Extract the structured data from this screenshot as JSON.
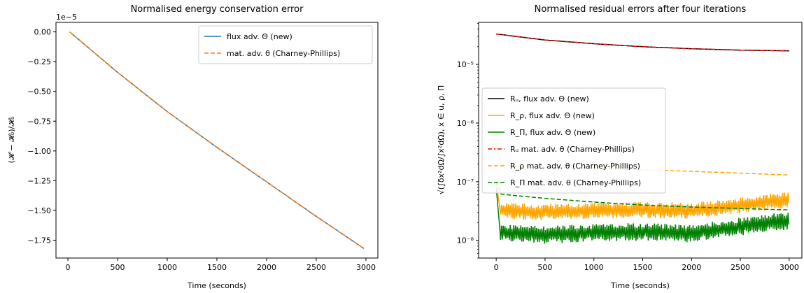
{
  "chart_data": [
    {
      "type": "line",
      "title": "Normalised energy conservation error",
      "xlabel": "Time (seconds)",
      "ylabel": "(𝓗 − 𝓗₀)/𝓗₀",
      "y_offset_text": "1e−5",
      "xlim": [
        -120,
        3120
      ],
      "ylim": [
        -1.9,
        0.08
      ],
      "x_ticks": [
        0,
        500,
        1000,
        1500,
        2000,
        2500,
        3000
      ],
      "x_tick_labels": [
        "0",
        "500",
        "1000",
        "1500",
        "2000",
        "2500",
        "3000"
      ],
      "y_ticks": [
        0.0,
        -0.25,
        -0.5,
        -0.75,
        -1.0,
        -1.25,
        -1.5,
        -1.75
      ],
      "y_tick_labels": [
        "0.00",
        "−0.25",
        "−0.50",
        "−0.75",
        "−1.00",
        "−1.25",
        "−1.50",
        "−1.75"
      ],
      "legend_position": "top-right",
      "series": [
        {
          "name": "flux adv. Θ (new)",
          "color": "#1f77b4",
          "style": "solid",
          "x": [
            18,
            500,
            1000,
            1500,
            2000,
            2500,
            2980
          ],
          "y": [
            0.0,
            -0.34,
            -0.67,
            -0.97,
            -1.26,
            -1.55,
            -1.82
          ]
        },
        {
          "name": "mat. adv. θ (Charney-Phillips)",
          "color": "#ff7f0e",
          "style": "dashed",
          "x": [
            18,
            500,
            1000,
            1500,
            2000,
            2500,
            2980
          ],
          "y": [
            0.0,
            -0.34,
            -0.67,
            -0.97,
            -1.26,
            -1.55,
            -1.82
          ]
        }
      ]
    },
    {
      "type": "line",
      "title": "Normalised residual errors after four iterations",
      "xlabel": "Time (seconds)",
      "ylabel": "√(∫δx²dΩ/∫x²dΩ), x ∈ u, ρ, Π",
      "yscale": "log",
      "xlim": [
        -180,
        3130
      ],
      "ylim": [
        5e-09,
        5.2e-05
      ],
      "x_ticks": [
        0,
        500,
        1000,
        1500,
        2000,
        2500,
        3000
      ],
      "x_tick_labels": [
        "0",
        "500",
        "1000",
        "1500",
        "2000",
        "2500",
        "3000"
      ],
      "y_ticks": [
        1e-08,
        1e-07,
        1e-06,
        1e-05
      ],
      "y_tick_labels": [
        "10⁻⁸",
        "10⁻⁷",
        "10⁻⁶",
        "10⁻⁵"
      ],
      "legend_position": "center-left",
      "series": [
        {
          "name": "Rᵤ, flux adv. Θ (new)",
          "color": "#000000",
          "style": "solid",
          "x": [
            0,
            500,
            1000,
            1500,
            2000,
            2500,
            3000
          ],
          "y": [
            3.3e-05,
            2.6e-05,
            2.25e-05,
            2e-05,
            1.85e-05,
            1.75e-05,
            1.7e-05
          ]
        },
        {
          "name": "R_ρ, flux adv. Θ (new)",
          "color": "#ffa500",
          "style": "solid",
          "noise": 0.45,
          "x": [
            0,
            40,
            100,
            500,
            1000,
            1500,
            2000,
            2300,
            2700,
            3000
          ],
          "y": [
            1e-07,
            3.3e-08,
            3.2e-08,
            3e-08,
            3.2e-08,
            3.3e-08,
            3.2e-08,
            3.6e-08,
            4.3e-08,
            5e-08
          ]
        },
        {
          "name": "R_Π, flux adv. Θ (new)",
          "color": "#008000",
          "style": "solid",
          "noise": 0.5,
          "x": [
            0,
            40,
            100,
            500,
            1000,
            1500,
            2000,
            2300,
            2700,
            3000
          ],
          "y": [
            8e-08,
            1.4e-08,
            1.35e-08,
            1.25e-08,
            1.35e-08,
            1.4e-08,
            1.3e-08,
            1.55e-08,
            1.9e-08,
            2.2e-08
          ]
        },
        {
          "name": "Rᵤ mat. adv. θ (Charney-Phillips)",
          "color": "#ff0000",
          "style": "dashdot",
          "x": [
            0,
            500,
            1000,
            1500,
            2000,
            2500,
            3000
          ],
          "y": [
            3.3e-05,
            2.6e-05,
            2.25e-05,
            2e-05,
            1.85e-05,
            1.75e-05,
            1.7e-05
          ]
        },
        {
          "name": "R_ρ mat. adv. θ (Charney-Phillips)",
          "color": "#ffa500",
          "style": "dashed",
          "x": [
            0,
            30,
            200,
            500,
            1000,
            1500,
            2000,
            2500,
            3000
          ],
          "y": [
            4.2e-07,
            2e-07,
            1.8e-07,
            1.75e-07,
            1.7e-07,
            1.6e-07,
            1.5e-07,
            1.4e-07,
            1.3e-07
          ]
        },
        {
          "name": "R_Π mat. adv. θ (Charney-Phillips)",
          "color": "#008000",
          "style": "dashed",
          "x": [
            0,
            30,
            200,
            500,
            1000,
            1500,
            2000,
            2500,
            3000
          ],
          "y": [
            1e-07,
            6.2e-08,
            5.8e-08,
            5.2e-08,
            4.5e-08,
            4e-08,
            3.7e-08,
            3.5e-08,
            3.3e-08
          ]
        }
      ]
    }
  ]
}
